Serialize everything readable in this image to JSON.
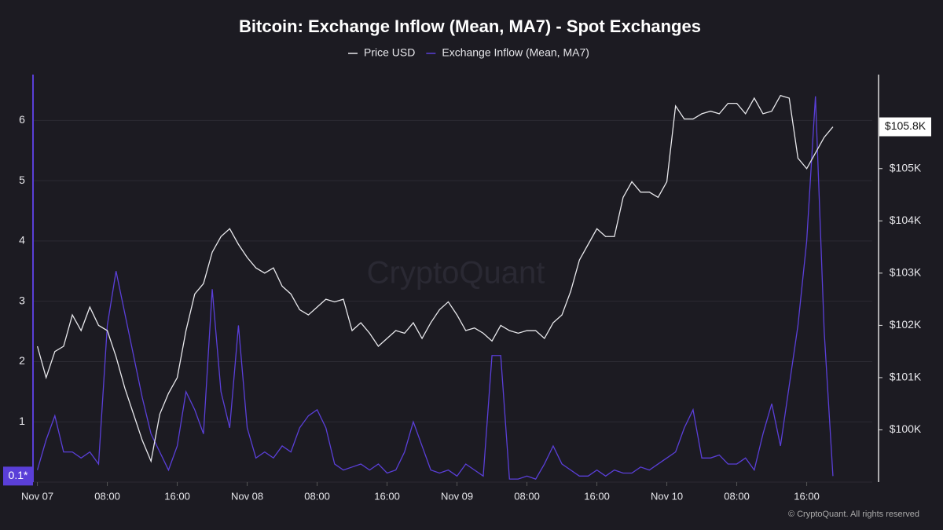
{
  "chart_data": {
    "type": "line",
    "title": "Bitcoin: Exchange Inflow (Mean, MA7) - Spot Exchanges",
    "watermark": "CryptoQuant",
    "footer": "© CryptoQuant. All rights reserved",
    "x": [
      0,
      1,
      2,
      3,
      4,
      5,
      6,
      7,
      8,
      9,
      10,
      11,
      12,
      13,
      14,
      15,
      16,
      17,
      18,
      19,
      20,
      21,
      22,
      23,
      24,
      25,
      26,
      27,
      28,
      29,
      30,
      31,
      32,
      33,
      34,
      35,
      36,
      37,
      38,
      39,
      40,
      41,
      42,
      43,
      44,
      45,
      46,
      47,
      48,
      49,
      50,
      51,
      52,
      53,
      54,
      55,
      56,
      57,
      58,
      59,
      60,
      61,
      62,
      63,
      64,
      65,
      66,
      67,
      68,
      69,
      70,
      71,
      72,
      73,
      74,
      75,
      76,
      77,
      78,
      79,
      80,
      81,
      82,
      83,
      84,
      85,
      86,
      87,
      88,
      89,
      90,
      91
    ],
    "xlim": [
      -0.5,
      95.5
    ],
    "xticks": [
      {
        "value": 0,
        "label": "Nov 07"
      },
      {
        "value": 8,
        "label": "08:00"
      },
      {
        "value": 16,
        "label": "16:00"
      },
      {
        "value": 24,
        "label": "Nov 08"
      },
      {
        "value": 32,
        "label": "08:00"
      },
      {
        "value": 40,
        "label": "16:00"
      },
      {
        "value": 48,
        "label": "Nov 09"
      },
      {
        "value": 56,
        "label": "08:00"
      },
      {
        "value": 64,
        "label": "16:00"
      },
      {
        "value": 72,
        "label": "Nov 10"
      },
      {
        "value": 80,
        "label": "08:00"
      },
      {
        "value": 88,
        "label": "16:00"
      }
    ],
    "ylim": [
      0,
      6.76
    ],
    "yticks": [
      0,
      1,
      2,
      3,
      4,
      5,
      6
    ],
    "y2lim": [
      99000,
      106800
    ],
    "y2ticks": [
      {
        "value": 100000,
        "label": "$100K"
      },
      {
        "value": 101000,
        "label": "$101K"
      },
      {
        "value": 102000,
        "label": "$102K"
      },
      {
        "value": 103000,
        "label": "$103K"
      },
      {
        "value": 104000,
        "label": "$104K"
      },
      {
        "value": 105000,
        "label": "$105K"
      }
    ],
    "grid": true,
    "legend": "top",
    "series": [
      {
        "name": "Price USD",
        "color": "#e8e8ec",
        "axis": "y2",
        "current_label": "$105.8K",
        "values": [
          101600,
          101000,
          101500,
          101600,
          102200,
          101900,
          102350,
          102000,
          101900,
          101400,
          100800,
          100300,
          99800,
          99400,
          100300,
          100700,
          101000,
          101900,
          102600,
          102800,
          103400,
          103700,
          103850,
          103550,
          103300,
          103100,
          103000,
          103100,
          102750,
          102600,
          102300,
          102200,
          102350,
          102500,
          102450,
          102500,
          101900,
          102050,
          101850,
          101600,
          101750,
          101900,
          101850,
          102050,
          101750,
          102050,
          102300,
          102450,
          102200,
          101900,
          101950,
          101850,
          101700,
          102000,
          101900,
          101850,
          101900,
          101900,
          101750,
          102050,
          102200,
          102650,
          103250,
          103550,
          103850,
          103700,
          103700,
          104450,
          104750,
          104550,
          104550,
          104450,
          104750,
          106200,
          105950,
          105950,
          106050,
          106100,
          106050,
          106250,
          106250,
          106050,
          106350,
          106050,
          106100,
          106400,
          106350,
          105200,
          105000,
          105300,
          105600,
          105800
        ]
      },
      {
        "name": "Exchange Inflow (Mean, MA7)",
        "color": "#5a3fd8",
        "current_label": "0.1*",
        "values": [
          0.2,
          0.7,
          1.1,
          0.5,
          0.5,
          0.4,
          0.5,
          0.3,
          2.6,
          3.5,
          2.8,
          2.1,
          1.4,
          0.8,
          0.5,
          0.2,
          0.6,
          1.5,
          1.2,
          0.8,
          3.2,
          1.5,
          0.9,
          2.6,
          0.9,
          0.4,
          0.5,
          0.4,
          0.6,
          0.5,
          0.9,
          1.1,
          1.2,
          0.9,
          0.3,
          0.2,
          0.25,
          0.3,
          0.2,
          0.3,
          0.15,
          0.2,
          0.5,
          1.0,
          0.6,
          0.2,
          0.15,
          0.2,
          0.1,
          0.3,
          0.2,
          0.1,
          2.1,
          2.1,
          0.05,
          0.05,
          0.1,
          0.05,
          0.3,
          0.6,
          0.3,
          0.2,
          0.1,
          0.1,
          0.2,
          0.1,
          0.2,
          0.15,
          0.15,
          0.25,
          0.2,
          0.3,
          0.4,
          0.5,
          0.9,
          1.2,
          0.4,
          0.4,
          0.45,
          0.3,
          0.3,
          0.4,
          0.2,
          0.8,
          1.3,
          0.6,
          1.6,
          2.6,
          4.0,
          6.4,
          2.5,
          0.1
        ]
      }
    ]
  }
}
